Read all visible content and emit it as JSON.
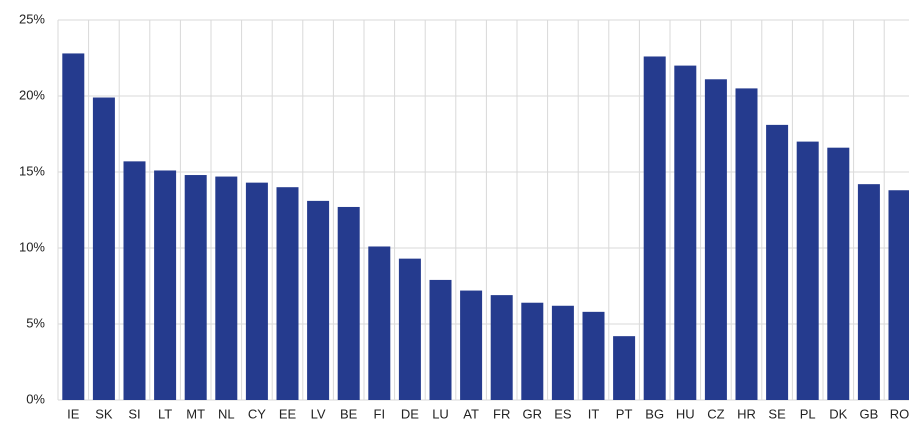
{
  "chart_data": {
    "type": "bar",
    "categories": [
      "IE",
      "SK",
      "SI",
      "LT",
      "MT",
      "NL",
      "CY",
      "EE",
      "LV",
      "BE",
      "FI",
      "DE",
      "LU",
      "AT",
      "FR",
      "GR",
      "ES",
      "IT",
      "PT",
      "BG",
      "HU",
      "CZ",
      "HR",
      "SE",
      "PL",
      "DK",
      "GB",
      "RO"
    ],
    "values": [
      22.8,
      19.9,
      15.7,
      15.1,
      14.8,
      14.7,
      14.3,
      14.0,
      13.1,
      12.7,
      10.1,
      9.3,
      7.9,
      7.2,
      6.9,
      6.4,
      6.2,
      5.8,
      4.2,
      22.6,
      22.0,
      21.1,
      20.5,
      18.1,
      17.0,
      16.6,
      14.2,
      13.8
    ],
    "color": "#253b8e",
    "ylim": [
      0,
      25
    ],
    "yticks": [
      {
        "value": 0,
        "label": "0%"
      },
      {
        "value": 5,
        "label": "5%"
      },
      {
        "value": 10,
        "label": "10%"
      },
      {
        "value": 15,
        "label": "15%"
      },
      {
        "value": 20,
        "label": "20%"
      },
      {
        "value": 25,
        "label": "25%"
      }
    ],
    "grid": true
  }
}
